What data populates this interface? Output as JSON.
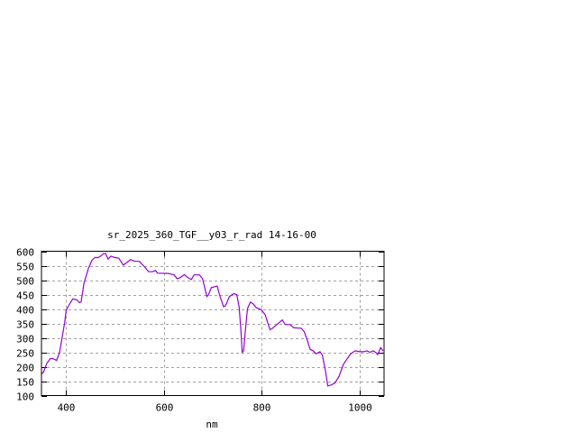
{
  "chart_data": {
    "type": "line",
    "title": "sr_2025_360_TGF__y03_r_rad 14-16-00",
    "xlabel": "nm",
    "ylabel": "",
    "xlim": [
      350,
      1050
    ],
    "ylim": [
      100,
      600
    ],
    "xticks": [
      400,
      600,
      800,
      1000
    ],
    "yticks": [
      100,
      150,
      200,
      250,
      300,
      350,
      400,
      450,
      500,
      550,
      600
    ],
    "grid": true,
    "legend": "none",
    "series": [
      {
        "color": "#9400d3",
        "x": [
          350,
          354,
          361,
          368,
          373,
          381,
          387,
          397.6,
          400.5,
          405.5,
          414,
          422,
          428,
          431,
          437,
          446,
          453,
          459,
          466,
          471,
          477,
          481,
          486,
          492,
          500,
          508,
          517,
          523,
          532,
          541,
          550,
          560,
          569,
          577,
          583,
          587,
          609,
          621,
          627,
          633,
          642,
          648,
          656,
          662,
          673,
          679,
          688,
          691,
          697,
          709,
          714,
          722,
          726,
          734,
          743,
          749,
          754,
          758,
          760,
          763,
          766,
          771,
          777,
          783,
          789,
          799,
          807,
          817,
          822,
          835,
          842,
          848,
          858,
          865,
          881,
          887,
          893,
          899,
          905,
          911,
          919,
          924,
          930,
          935,
          942,
          950,
          958,
          967,
          976,
          982,
          991,
          1000,
          1009,
          1015,
          1021,
          1028,
          1034,
          1037,
          1043,
          1048
        ],
        "y": [
          175,
          181,
          212,
          228,
          228,
          222,
          250,
          354,
          396,
          411,
          435,
          432,
          422,
          425,
          490,
          541,
          568,
          578,
          578,
          583,
          592,
          592,
          573,
          583,
          578,
          576,
          552,
          559,
          571,
          565,
          565,
          547,
          529,
          529,
          533,
          524,
          523,
          518,
          505,
          508,
          519,
          510,
          502,
          518,
          518,
          505,
          443,
          448,
          474,
          479,
          448,
          408,
          411,
          443,
          453,
          450,
          406,
          313,
          250,
          255,
          313,
          401,
          424,
          417,
          404,
          398,
          380,
          328,
          333,
          352,
          362,
          346,
          346,
          335,
          333,
          321,
          292,
          260,
          255,
          245,
          252,
          240,
          187,
          133,
          137,
          144,
          167,
          208,
          231,
          245,
          255,
          252,
          252,
          255,
          250,
          255,
          248,
          242,
          266,
          255
        ]
      }
    ]
  }
}
